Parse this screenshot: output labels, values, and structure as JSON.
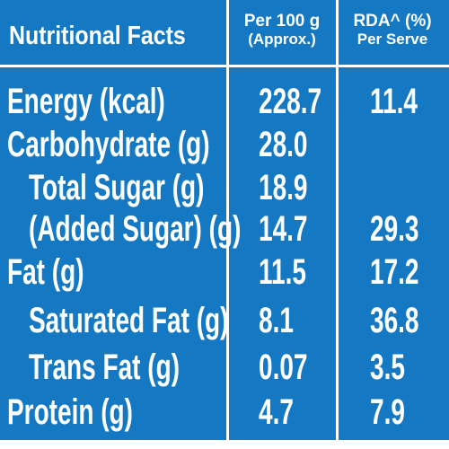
{
  "header": {
    "title": "Nutritional Facts",
    "col1_line1": "Per 100 g",
    "col1_line2": "(Approx.)",
    "col2_line1": "RDA^ (%)",
    "col2_line2": "Per Serve"
  },
  "rows": [
    {
      "name": "Energy (kcal)",
      "per100": "228.7",
      "rda": "11.4"
    },
    {
      "name": "Carbohydrate (g)",
      "per100": "28.0",
      "rda": ""
    },
    {
      "name": "Total Sugar (g)",
      "per100": "18.9",
      "rda": ""
    },
    {
      "name": "(Added Sugar) (g)",
      "per100": "14.7",
      "rda": "29.3"
    },
    {
      "name": "Fat (g)",
      "per100": "11.5",
      "rda": "17.2"
    },
    {
      "name": "Saturated Fat (g)",
      "per100": "8.1",
      "rda": "36.8"
    },
    {
      "name": "Trans Fat (g)",
      "per100": "0.07",
      "rda": "3.5"
    },
    {
      "name": "Protein (g)",
      "per100": "4.7",
      "rda": "7.9"
    }
  ],
  "colors": {
    "background": "#1479c2",
    "text": "#ffffff",
    "border": "#ffffff"
  }
}
